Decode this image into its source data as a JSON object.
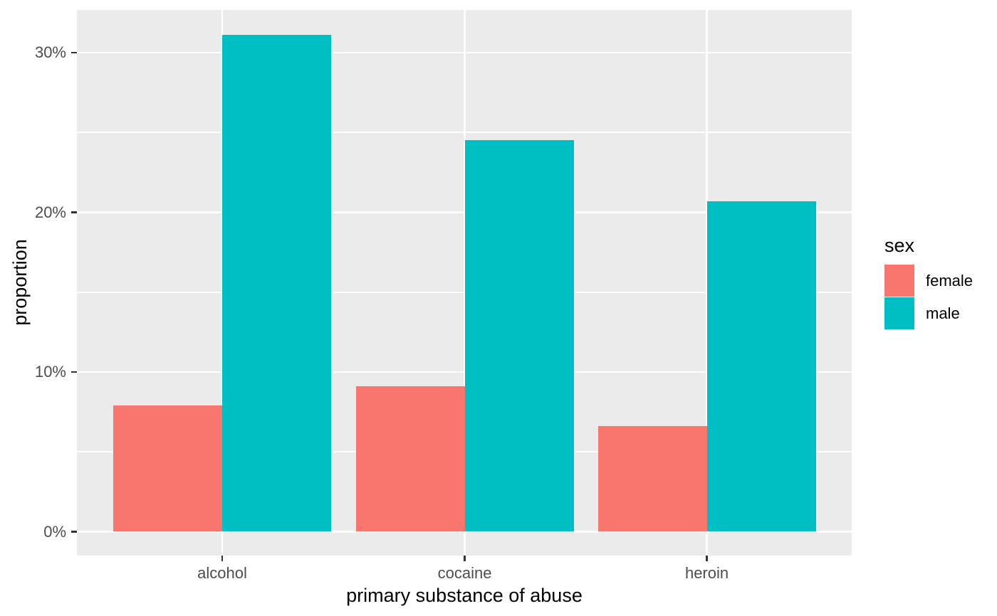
{
  "chart_data": {
    "type": "bar",
    "title": "",
    "xlabel": "primary substance of abuse",
    "ylabel": "proportion",
    "categories": [
      "alcohol",
      "cocaine",
      "heroin"
    ],
    "series": [
      {
        "name": "female",
        "color": "#F8766D",
        "values": [
          7.9,
          9.1,
          6.6
        ]
      },
      {
        "name": "male",
        "color": "#00BFC4",
        "values": [
          31.1,
          24.5,
          20.7
        ]
      }
    ],
    "value_unit": "percent",
    "y_axis": {
      "major_ticks": [
        {
          "value": 0,
          "label": "0%"
        },
        {
          "value": 10,
          "label": "10%"
        },
        {
          "value": 20,
          "label": "20%"
        },
        {
          "value": 30,
          "label": "30%"
        }
      ],
      "minor_ticks": [
        5,
        15,
        25
      ],
      "range": [
        -1.5,
        32.7
      ]
    },
    "legend": {
      "title": "sex",
      "position": "right",
      "entries": [
        "female",
        "male"
      ]
    },
    "layout_hints": {
      "grid": "on",
      "grouping": "dodge"
    },
    "style": {
      "figure_background": "#FFFFFF",
      "panel_background": "#EBEBEB",
      "gridline_color": "#FFFFFF",
      "tick_label_color": "#4D4D4D",
      "tick_mark_color": "#333333",
      "axis_title_color": "#000000"
    }
  }
}
